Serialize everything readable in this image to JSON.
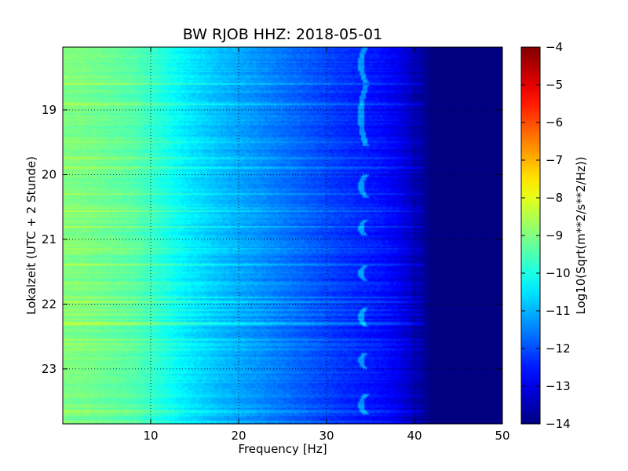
{
  "chart_data": [
    {
      "type": "heatmap",
      "title": "BW RJOB HHZ: 2018-05-01",
      "xlabel": "Frequency [Hz]",
      "ylabel": "Lokalzeit (UTC + 2 Stunde)",
      "xlim": [
        0,
        50
      ],
      "ylim": [
        18.03,
        23.85
      ],
      "y_inverted": true,
      "x_ticks": [
        10,
        20,
        30,
        40,
        50
      ],
      "x_tick_labels": [
        "10",
        "20",
        "30",
        "40",
        "50"
      ],
      "y_ticks": [
        19,
        20,
        21,
        22,
        23
      ],
      "y_tick_labels": [
        "19",
        "20",
        "21",
        "22",
        "23"
      ],
      "grid": true,
      "colormap": "jet",
      "value_label": "Log10(Sqrt(m**2/s**2/Hz))",
      "vmin": -14,
      "vmax": -4,
      "frequency_profile": [
        {
          "f": 0,
          "v": -9.0
        },
        {
          "f": 3,
          "v": -9.1
        },
        {
          "f": 8,
          "v": -9.4
        },
        {
          "f": 10,
          "v": -9.7
        },
        {
          "f": 14,
          "v": -10.4
        },
        {
          "f": 18,
          "v": -10.9
        },
        {
          "f": 22,
          "v": -11.3
        },
        {
          "f": 27,
          "v": -11.8
        },
        {
          "f": 32,
          "v": -12.3
        },
        {
          "f": 36,
          "v": -12.6
        },
        {
          "f": 38,
          "v": -12.9
        },
        {
          "f": 41,
          "v": -13.7
        },
        {
          "f": 42,
          "v": -14.0
        },
        {
          "f": 50,
          "v": -14.0
        }
      ],
      "tonal_line_segments": [
        {
          "t_start": 18.0,
          "t_end": 18.58,
          "f": 34.5
        },
        {
          "t_start": 18.62,
          "t_end": 19.55,
          "f": 34.5
        },
        {
          "t_start": 20.0,
          "t_end": 20.35,
          "f": 34.5
        },
        {
          "t_start": 20.7,
          "t_end": 20.95,
          "f": 34.5
        },
        {
          "t_start": 21.4,
          "t_end": 21.65,
          "f": 34.5
        },
        {
          "t_start": 22.05,
          "t_end": 22.35,
          "f": 34.5
        },
        {
          "t_start": 22.75,
          "t_end": 23.0,
          "f": 34.5
        },
        {
          "t_start": 23.4,
          "t_end": 23.7,
          "f": 34.5
        }
      ],
      "colorbar": {
        "ticks": [
          -4,
          -5,
          -6,
          -7,
          -8,
          -9,
          -10,
          -11,
          -12,
          -13,
          -14
        ],
        "tick_labels": [
          "−4",
          "−5",
          "−6",
          "−7",
          "−8",
          "−9",
          "−10",
          "−11",
          "−12",
          "−13",
          "−14"
        ]
      }
    }
  ]
}
